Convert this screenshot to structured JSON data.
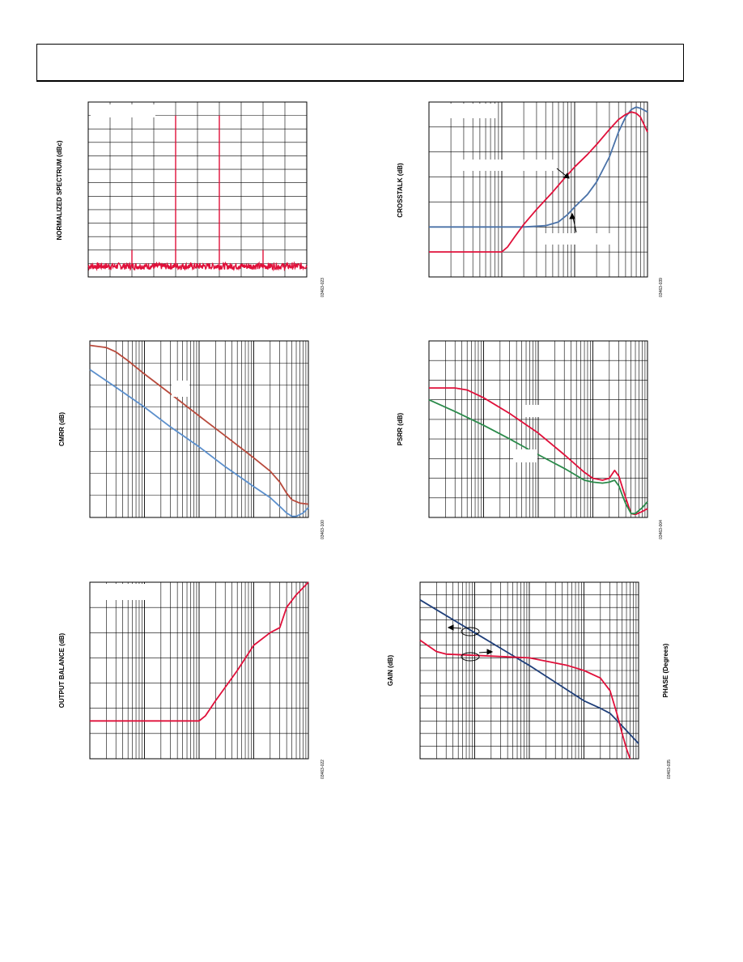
{
  "page": {
    "ylabels": {
      "spectrum": "NORMALIZED SPECTRUM (dBc)",
      "crosstalk": "CROSSTALK (dB)",
      "cmrr": "CMRR (dB)",
      "psrr": "PSRR (dB)",
      "output_balance": "OUTPUT BALANCE (dB)",
      "gain": "GAIN (dB)",
      "phase": "PHASE (Degrees)"
    },
    "figure_ids": {
      "spectrum": "03463-023",
      "crosstalk": "03463-039",
      "cmrr": "03463-100",
      "psrr": "03463-004",
      "output_balance": "03463-022",
      "gain_phase": "03463-035"
    }
  },
  "colors": {
    "red": "#e0103a",
    "blue": "#4a72a8",
    "brown": "#b84a3c",
    "lightblue": "#5b8fcc",
    "green": "#2a8a4a",
    "navy": "#1f3f7a",
    "grid": "#000000"
  },
  "chart_data": [
    {
      "id": "spectrum",
      "type": "line",
      "xscale": "linear",
      "xlim": [
        0,
        10
      ],
      "ylim": [
        0,
        13
      ],
      "grid": "on",
      "series": [
        {
          "color": "red",
          "noise_floor": 0.8,
          "noise_amplitude": 0.25,
          "spikes": [
            {
              "x": 2,
              "y": 2.0
            },
            {
              "x": 4,
              "y": 12.0
            },
            {
              "x": 6,
              "y": 12.0
            },
            {
              "x": 8,
              "y": 2.0
            }
          ]
        }
      ]
    },
    {
      "id": "crosstalk",
      "type": "line",
      "xscale": "log",
      "xlim": [
        1,
        1000
      ],
      "ylim": [
        0,
        7
      ],
      "grid": "on",
      "series": [
        {
          "color": "blue",
          "points": [
            [
              1,
              2
            ],
            [
              20,
              2
            ],
            [
              40,
              2.05
            ],
            [
              60,
              2.2
            ],
            [
              80,
              2.5
            ],
            [
              100,
              2.8
            ],
            [
              150,
              3.3
            ],
            [
              200,
              3.8
            ],
            [
              300,
              4.8
            ],
            [
              400,
              5.8
            ],
            [
              500,
              6.4
            ],
            [
              600,
              6.7
            ],
            [
              700,
              6.8
            ],
            [
              800,
              6.75
            ],
            [
              1000,
              6.6
            ]
          ]
        },
        {
          "color": "red",
          "points": [
            [
              1,
              1
            ],
            [
              10,
              1
            ],
            [
              12,
              1.2
            ],
            [
              15,
              1.6
            ],
            [
              20,
              2.1
            ],
            [
              30,
              2.7
            ],
            [
              50,
              3.4
            ],
            [
              70,
              3.9
            ],
            [
              100,
              4.4
            ],
            [
              150,
              4.9
            ],
            [
              200,
              5.3
            ],
            [
              300,
              5.9
            ],
            [
              400,
              6.3
            ],
            [
              500,
              6.5
            ],
            [
              600,
              6.6
            ],
            [
              700,
              6.55
            ],
            [
              800,
              6.4
            ],
            [
              1000,
              5.8
            ]
          ]
        }
      ]
    },
    {
      "id": "cmrr",
      "type": "line",
      "xscale": "log",
      "xlim": [
        1,
        10000
      ],
      "ylim": [
        0,
        8
      ],
      "grid": "on",
      "series": [
        {
          "color": "brown",
          "points": [
            [
              1,
              7.8
            ],
            [
              2,
              7.7
            ],
            [
              3,
              7.5
            ],
            [
              5,
              7.1
            ],
            [
              10,
              6.5
            ],
            [
              30,
              5.6
            ],
            [
              100,
              4.6
            ],
            [
              300,
              3.7
            ],
            [
              1000,
              2.7
            ],
            [
              2000,
              2.1
            ],
            [
              3000,
              1.6
            ],
            [
              4000,
              1.1
            ],
            [
              5000,
              0.8
            ],
            [
              7000,
              0.65
            ],
            [
              10000,
              0.6
            ]
          ]
        },
        {
          "color": "lightblue",
          "points": [
            [
              1,
              6.7
            ],
            [
              3,
              5.9
            ],
            [
              10,
              5.0
            ],
            [
              30,
              4.1
            ],
            [
              100,
              3.2
            ],
            [
              300,
              2.3
            ],
            [
              1000,
              1.4
            ],
            [
              2000,
              0.9
            ],
            [
              3000,
              0.5
            ],
            [
              4000,
              0.2
            ],
            [
              5000,
              0.05
            ],
            [
              6000,
              0.05
            ],
            [
              8000,
              0.2
            ],
            [
              10000,
              0.45
            ]
          ]
        }
      ]
    },
    {
      "id": "psrr",
      "type": "line",
      "xscale": "log",
      "xlim": [
        1,
        10000
      ],
      "ylim": [
        0,
        9
      ],
      "grid": "on",
      "series": [
        {
          "color": "red",
          "points": [
            [
              1,
              6.6
            ],
            [
              3,
              6.6
            ],
            [
              5,
              6.5
            ],
            [
              10,
              6.1
            ],
            [
              30,
              5.3
            ],
            [
              100,
              4.3
            ],
            [
              300,
              3.2
            ],
            [
              700,
              2.3
            ],
            [
              1000,
              2.0
            ],
            [
              1500,
              1.9
            ],
            [
              2000,
              2.0
            ],
            [
              2500,
              2.4
            ],
            [
              3000,
              2.1
            ],
            [
              3500,
              1.5
            ],
            [
              4000,
              1.0
            ],
            [
              5000,
              0.2
            ],
            [
              6000,
              0.15
            ],
            [
              8000,
              0.3
            ],
            [
              10000,
              0.45
            ]
          ]
        },
        {
          "color": "green",
          "points": [
            [
              1,
              6.0
            ],
            [
              3,
              5.4
            ],
            [
              10,
              4.7
            ],
            [
              30,
              4.0
            ],
            [
              100,
              3.2
            ],
            [
              300,
              2.5
            ],
            [
              700,
              1.9
            ],
            [
              1000,
              1.8
            ],
            [
              1500,
              1.75
            ],
            [
              2000,
              1.8
            ],
            [
              2500,
              1.9
            ],
            [
              3000,
              1.6
            ],
            [
              3500,
              1.1
            ],
            [
              4000,
              0.7
            ],
            [
              5000,
              0.2
            ],
            [
              6000,
              0.2
            ],
            [
              8000,
              0.5
            ],
            [
              10000,
              0.8
            ]
          ]
        }
      ]
    },
    {
      "id": "output_balance",
      "type": "line",
      "xscale": "log",
      "xlim": [
        1,
        10000
      ],
      "ylim": [
        0,
        7
      ],
      "grid": "on",
      "series": [
        {
          "color": "red",
          "points": [
            [
              1,
              1.5
            ],
            [
              10,
              1.5
            ],
            [
              50,
              1.5
            ],
            [
              100,
              1.5
            ],
            [
              130,
              1.7
            ],
            [
              200,
              2.3
            ],
            [
              500,
              3.5
            ],
            [
              1000,
              4.5
            ],
            [
              2000,
              5.0
            ],
            [
              3000,
              5.2
            ],
            [
              4000,
              6.0
            ],
            [
              6000,
              6.5
            ],
            [
              10000,
              7.0
            ]
          ]
        }
      ]
    },
    {
      "id": "gain_phase",
      "type": "line",
      "xscale": "log",
      "xlim": [
        1,
        10000
      ],
      "ylim": [
        0,
        7
      ],
      "grid": "on",
      "series": [
        {
          "color": "navy",
          "points": [
            [
              1,
              6.3
            ],
            [
              10,
              5.0
            ],
            [
              100,
              3.7
            ],
            [
              1000,
              2.3
            ],
            [
              2000,
              2.0
            ],
            [
              3000,
              1.8
            ],
            [
              5000,
              1.3
            ],
            [
              10000,
              0.6
            ]
          ]
        },
        {
          "color": "red",
          "points": [
            [
              1,
              4.7
            ],
            [
              2,
              4.25
            ],
            [
              3,
              4.15
            ],
            [
              10,
              4.1
            ],
            [
              100,
              4.0
            ],
            [
              500,
              3.7
            ],
            [
              1000,
              3.5
            ],
            [
              2000,
              3.2
            ],
            [
              3000,
              2.7
            ],
            [
              4000,
              1.8
            ],
            [
              5000,
              1.0
            ],
            [
              6000,
              0.4
            ],
            [
              7000,
              0.0
            ]
          ]
        }
      ]
    }
  ]
}
